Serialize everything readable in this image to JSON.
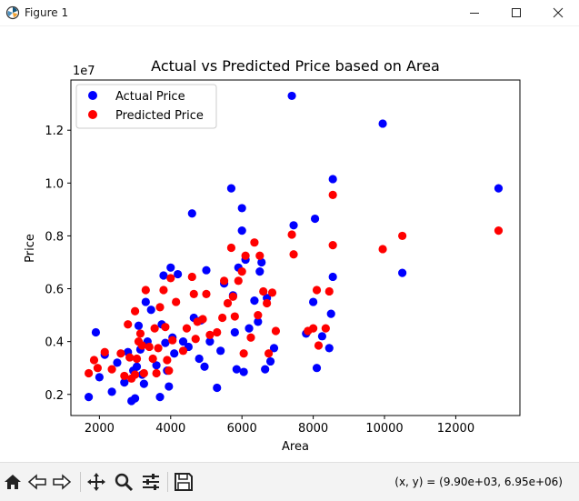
{
  "window": {
    "title": "Figure 1",
    "icon": "matplotlib-icon",
    "controls": [
      "minimize-icon",
      "maximize-icon",
      "close-icon"
    ]
  },
  "toolbar": {
    "buttons": [
      "home-icon",
      "back-icon",
      "forward-icon",
      "pan-icon",
      "zoom-icon",
      "configure-subplots-icon",
      "save-icon"
    ],
    "coordinates": "(x, y) = (9.90e+03, 6.95e+06)"
  },
  "colors": {
    "actual": "#0000ff",
    "predicted": "#ff0000"
  },
  "chart_data": {
    "type": "scatter",
    "title": "Actual vs Predicted Price based on Area",
    "xlabel": "Area",
    "ylabel": "Price",
    "y_offset_label": "1e7",
    "xlim": [
      1200,
      13800
    ],
    "ylim": [
      1200000,
      13900000
    ],
    "xticks": [
      2000,
      4000,
      6000,
      8000,
      10000,
      12000
    ],
    "xtick_labels": [
      "2000",
      "4000",
      "6000",
      "8000",
      "10000",
      "12000"
    ],
    "yticks": [
      2000000,
      4000000,
      6000000,
      8000000,
      10000000,
      12000000
    ],
    "ytick_labels": [
      "0.2",
      "0.4",
      "0.6",
      "0.8",
      "1.0",
      "1.2"
    ],
    "grid": false,
    "legend": "upper-left",
    "series": [
      {
        "name": "Actual Price",
        "color": "#0000ff",
        "points": [
          [
            1700,
            1900000
          ],
          [
            1900,
            4350000
          ],
          [
            2000,
            2650000
          ],
          [
            2150,
            3500000
          ],
          [
            2350,
            2100000
          ],
          [
            2500,
            3200000
          ],
          [
            2700,
            2450000
          ],
          [
            2800,
            3600000
          ],
          [
            2900,
            1750000
          ],
          [
            2950,
            2900000
          ],
          [
            3000,
            1850000
          ],
          [
            3050,
            3050000
          ],
          [
            3100,
            4600000
          ],
          [
            3150,
            3700000
          ],
          [
            3200,
            2750000
          ],
          [
            3250,
            2400000
          ],
          [
            3300,
            5500000
          ],
          [
            3350,
            4000000
          ],
          [
            3450,
            5200000
          ],
          [
            3600,
            3100000
          ],
          [
            3700,
            1900000
          ],
          [
            3750,
            4650000
          ],
          [
            3800,
            6500000
          ],
          [
            3850,
            3950000
          ],
          [
            3900,
            2900000
          ],
          [
            3950,
            2300000
          ],
          [
            4000,
            6800000
          ],
          [
            4050,
            4150000
          ],
          [
            4100,
            3550000
          ],
          [
            4200,
            6550000
          ],
          [
            4350,
            4000000
          ],
          [
            4500,
            3800000
          ],
          [
            4600,
            8850000
          ],
          [
            4650,
            4900000
          ],
          [
            4800,
            3350000
          ],
          [
            4850,
            4800000
          ],
          [
            4950,
            3050000
          ],
          [
            5000,
            6700000
          ],
          [
            5100,
            4000000
          ],
          [
            5300,
            2250000
          ],
          [
            5400,
            3650000
          ],
          [
            5500,
            6200000
          ],
          [
            5700,
            9800000
          ],
          [
            5750,
            5750000
          ],
          [
            5800,
            4350000
          ],
          [
            5850,
            2950000
          ],
          [
            5900,
            6800000
          ],
          [
            6000,
            8200000
          ],
          [
            6000,
            9050000
          ],
          [
            6050,
            2850000
          ],
          [
            6100,
            7100000
          ],
          [
            6200,
            4500000
          ],
          [
            6350,
            5550000
          ],
          [
            6450,
            4750000
          ],
          [
            6500,
            6650000
          ],
          [
            6550,
            7000000
          ],
          [
            6650,
            2950000
          ],
          [
            6700,
            5650000
          ],
          [
            6800,
            3250000
          ],
          [
            6900,
            3750000
          ],
          [
            7400,
            13300000
          ],
          [
            7450,
            8400000
          ],
          [
            7800,
            4300000
          ],
          [
            8000,
            5500000
          ],
          [
            8050,
            8650000
          ],
          [
            8100,
            3000000
          ],
          [
            8250,
            4200000
          ],
          [
            8450,
            3750000
          ],
          [
            8500,
            5050000
          ],
          [
            8550,
            10150000
          ],
          [
            8550,
            6450000
          ],
          [
            9950,
            12250000
          ],
          [
            10500,
            6600000
          ],
          [
            13200,
            9800000
          ]
        ]
      },
      {
        "name": "Predicted Price",
        "color": "#ff0000",
        "points": [
          [
            1700,
            2800000
          ],
          [
            1850,
            3300000
          ],
          [
            1950,
            3000000
          ],
          [
            2150,
            3600000
          ],
          [
            2350,
            2950000
          ],
          [
            2600,
            3550000
          ],
          [
            2700,
            2700000
          ],
          [
            2800,
            4650000
          ],
          [
            2850,
            3400000
          ],
          [
            2900,
            2600000
          ],
          [
            3000,
            5150000
          ],
          [
            3000,
            2750000
          ],
          [
            3050,
            3350000
          ],
          [
            3100,
            4000000
          ],
          [
            3150,
            4300000
          ],
          [
            3200,
            3850000
          ],
          [
            3250,
            2800000
          ],
          [
            3300,
            5950000
          ],
          [
            3400,
            3800000
          ],
          [
            3500,
            3350000
          ],
          [
            3550,
            4500000
          ],
          [
            3600,
            2800000
          ],
          [
            3650,
            3750000
          ],
          [
            3700,
            5300000
          ],
          [
            3800,
            5950000
          ],
          [
            3850,
            4550000
          ],
          [
            3900,
            3300000
          ],
          [
            3950,
            2900000
          ],
          [
            4000,
            6400000
          ],
          [
            4050,
            4050000
          ],
          [
            4150,
            5500000
          ],
          [
            4350,
            3650000
          ],
          [
            4450,
            4500000
          ],
          [
            4600,
            6450000
          ],
          [
            4650,
            5800000
          ],
          [
            4700,
            4100000
          ],
          [
            4750,
            4750000
          ],
          [
            4900,
            4850000
          ],
          [
            5000,
            5800000
          ],
          [
            5100,
            4250000
          ],
          [
            5300,
            4350000
          ],
          [
            5450,
            4900000
          ],
          [
            5500,
            6300000
          ],
          [
            5600,
            5450000
          ],
          [
            5700,
            7550000
          ],
          [
            5750,
            5700000
          ],
          [
            5800,
            4950000
          ],
          [
            5900,
            6300000
          ],
          [
            6000,
            6650000
          ],
          [
            6050,
            3550000
          ],
          [
            6100,
            7250000
          ],
          [
            6250,
            4150000
          ],
          [
            6350,
            7750000
          ],
          [
            6450,
            5000000
          ],
          [
            6500,
            7250000
          ],
          [
            6600,
            5900000
          ],
          [
            6700,
            5450000
          ],
          [
            6750,
            3550000
          ],
          [
            6850,
            5850000
          ],
          [
            6950,
            4400000
          ],
          [
            7400,
            8050000
          ],
          [
            7450,
            7300000
          ],
          [
            7850,
            4400000
          ],
          [
            8000,
            4500000
          ],
          [
            8100,
            5950000
          ],
          [
            8150,
            3850000
          ],
          [
            8350,
            4500000
          ],
          [
            8450,
            5900000
          ],
          [
            8550,
            7650000
          ],
          [
            8550,
            9550000
          ],
          [
            9950,
            7500000
          ],
          [
            10500,
            8000000
          ],
          [
            13200,
            8200000
          ]
        ]
      }
    ]
  }
}
